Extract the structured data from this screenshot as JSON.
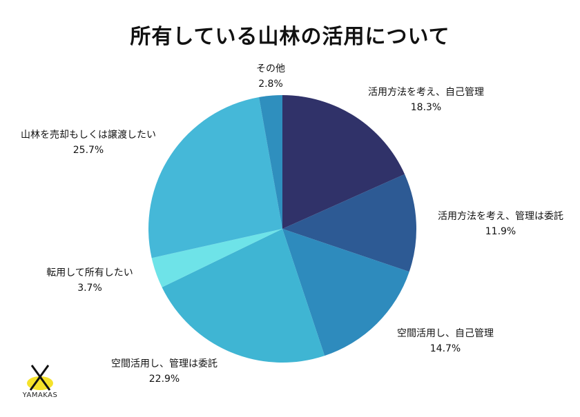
{
  "chart_data": {
    "type": "pie",
    "title": "所有している山林の活用について",
    "start_angle_deg": 0,
    "direction": "clockwise",
    "slices": [
      {
        "label": "活用方法を考え、自己管理",
        "value": 18.3,
        "value_label": "18.3%",
        "color": "#303269"
      },
      {
        "label": "活用方法を考え、管理は委託",
        "value": 11.9,
        "value_label": "11.9%",
        "color": "#2d5a94"
      },
      {
        "label": "空間活用し、自己管理",
        "value": 14.7,
        "value_label": "14.7%",
        "color": "#2e8bbd"
      },
      {
        "label": "空間活用し、管理は委託",
        "value": 22.9,
        "value_label": "22.9%",
        "color": "#3fb5d3"
      },
      {
        "label": "転用して所有したい",
        "value": 3.7,
        "value_label": "3.7%",
        "color": "#6ee3e8"
      },
      {
        "label": "山林を売却もしくは譲渡したい",
        "value": 25.7,
        "value_label": "25.7%",
        "color": "#45b8d8"
      },
      {
        "label": "その他",
        "value": 2.8,
        "value_label": "2.8%",
        "color": "#2f8fbe"
      }
    ]
  },
  "logo": {
    "text": "YAMAKAS",
    "accent_color": "#f5e22a"
  }
}
